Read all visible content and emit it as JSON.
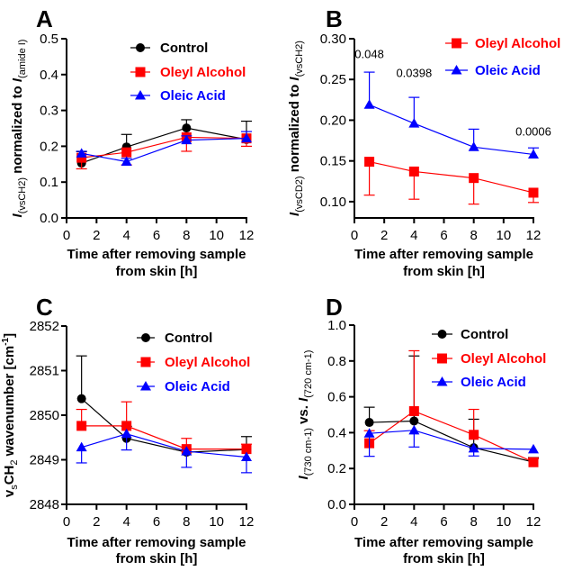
{
  "colors": {
    "Control": "#000000",
    "Oleyl Alcohol": "#ff0000",
    "Oleic Acid": "#0000ff"
  },
  "chart_data": [
    {
      "panel": "A",
      "type": "line",
      "xlabel": [
        "Time after removing sample",
        "from skin [h]"
      ],
      "ylabel": [
        {
          "t": "I",
          "s": "italic"
        },
        {
          "t": "(vsCH2)",
          "s": "sub"
        },
        {
          "t": " normalized to ",
          "s": "normal"
        },
        {
          "t": "I",
          "s": "italic"
        },
        {
          "t": "(amide I)",
          "s": "sub"
        }
      ],
      "xlim": [
        0,
        12
      ],
      "xticks": [
        0,
        2,
        4,
        6,
        8,
        10,
        12
      ],
      "ylim": [
        0,
        0.5
      ],
      "yticks": [
        "0.0",
        "0.1",
        "0.2",
        "0.3",
        "0.4",
        "0.5"
      ],
      "ytick_values": [
        0,
        0.1,
        0.2,
        0.3,
        0.4,
        0.5
      ],
      "legend": [
        "Control",
        "Oleyl Alcohol",
        "Oleic Acid"
      ],
      "legend_position": "top-right",
      "x": [
        1,
        4,
        8,
        12
      ],
      "series": [
        {
          "name": "Control",
          "marker": "circle",
          "values": [
            0.153,
            0.198,
            0.251,
            0.219
          ],
          "err": [
            0.032,
            0.035,
            0.023,
            0.051
          ],
          "err_dir": "up"
        },
        {
          "name": "Oleyl Alcohol",
          "marker": "square",
          "values": [
            0.168,
            0.183,
            0.225,
            0.222
          ],
          "err": [
            0.031,
            0.035,
            0.039,
            0.022
          ],
          "err_dir": "down"
        },
        {
          "name": "Oleic Acid",
          "marker": "triangle",
          "values": [
            0.18,
            0.157,
            0.217,
            0.222
          ],
          "err": [
            0.006,
            0.009,
            0.012,
            0.019
          ],
          "err_dir": "up"
        }
      ],
      "annotations": []
    },
    {
      "panel": "B",
      "type": "line",
      "xlabel": [
        "Time after removing sample",
        "from skin [h]"
      ],
      "ylabel": [
        {
          "t": "I",
          "s": "italic"
        },
        {
          "t": "(vsCD2)",
          "s": "sub"
        },
        {
          "t": " normalized to ",
          "s": "normal"
        },
        {
          "t": "I",
          "s": "italic"
        },
        {
          "t": "(vsCH2)",
          "s": "sub"
        }
      ],
      "xlim": [
        0,
        12
      ],
      "xticks": [
        0,
        2,
        4,
        6,
        8,
        10,
        12
      ],
      "ylim": [
        0.08,
        0.3
      ],
      "yticks": [
        "0.10",
        "0.15",
        "0.20",
        "0.25",
        "0.30"
      ],
      "ytick_values": [
        0.1,
        0.15,
        0.2,
        0.25,
        0.3
      ],
      "legend": [
        "Oleyl Alcohol",
        "Oleic Acid"
      ],
      "legend_position": "top-right",
      "x": [
        1,
        4,
        8,
        12
      ],
      "series": [
        {
          "name": "Oleyl Alcohol",
          "marker": "square",
          "values": [
            0.149,
            0.137,
            0.129,
            0.111
          ],
          "err": [
            0.041,
            0.034,
            0.032,
            0.012
          ],
          "err_dir": "down"
        },
        {
          "name": "Oleic Acid",
          "marker": "triangle",
          "values": [
            0.219,
            0.196,
            0.167,
            0.158
          ],
          "err": [
            0.04,
            0.032,
            0.022,
            0.008
          ],
          "err_dir": "up"
        }
      ],
      "annotations": [
        {
          "x": 1,
          "y": 0.276,
          "text": "0.048"
        },
        {
          "x": 4,
          "y": 0.253,
          "text": "0.0398"
        },
        {
          "x": 12,
          "y": 0.181,
          "text": "0.0006"
        }
      ]
    },
    {
      "panel": "C",
      "type": "line",
      "xlabel": [
        "Time after removing sample",
        "from skin [h]"
      ],
      "ylabel": [
        {
          "t": "v",
          "s": "normal"
        },
        {
          "t": "s",
          "s": "sub"
        },
        {
          "t": "CH",
          "s": "normal"
        },
        {
          "t": "2",
          "s": "sub"
        },
        {
          "t": " wavenumber [cm",
          "s": "normal"
        },
        {
          "t": "-1",
          "s": "sup"
        },
        {
          "t": "]",
          "s": "normal"
        }
      ],
      "xlim": [
        0,
        12
      ],
      "xticks": [
        0,
        2,
        4,
        6,
        8,
        10,
        12
      ],
      "ylim": [
        2848,
        2852
      ],
      "yticks": [
        "2848",
        "2849",
        "2850",
        "2851",
        "2852"
      ],
      "ytick_values": [
        2848,
        2849,
        2850,
        2851,
        2852
      ],
      "legend": [
        "Control",
        "Oleyl Alcohol",
        "Oleic Acid"
      ],
      "legend_position": "top-right",
      "x": [
        1,
        4,
        8,
        12
      ],
      "series": [
        {
          "name": "Control",
          "marker": "circle",
          "values": [
            2850.37,
            2849.48,
            2849.17,
            2849.23
          ],
          "err": [
            0.96,
            0.27,
            0.0,
            0.29
          ],
          "err_dir": "up"
        },
        {
          "name": "Oleyl Alcohol",
          "marker": "square",
          "values": [
            2849.76,
            2849.76,
            2849.24,
            2849.24
          ],
          "err": [
            0.37,
            0.54,
            0.24,
            0.11
          ],
          "err_dir": "up"
        },
        {
          "name": "Oleic Acid",
          "marker": "triangle",
          "values": [
            2849.28,
            2849.58,
            2849.19,
            2849.06
          ],
          "err": [
            0.35,
            0.36,
            0.36,
            0.35
          ],
          "err_dir": "down"
        }
      ],
      "annotations": []
    },
    {
      "panel": "D",
      "type": "line",
      "xlabel": [
        "Time after removing sample",
        "from skin [h]"
      ],
      "ylabel": [
        {
          "t": "I",
          "s": "italic"
        },
        {
          "t": "(730 cm-1)",
          "s": "sub"
        },
        {
          "t": " vs. ",
          "s": "normal"
        },
        {
          "t": "I",
          "s": "italic"
        },
        {
          "t": "(720 cm-1)",
          "s": "sub"
        }
      ],
      "xlim": [
        0,
        12
      ],
      "xticks": [
        0,
        2,
        4,
        6,
        8,
        10,
        12
      ],
      "ylim": [
        0,
        1.0
      ],
      "yticks": [
        "0.0",
        "0.2",
        "0.4",
        "0.6",
        "0.8",
        "1.0"
      ],
      "ytick_values": [
        0,
        0.2,
        0.4,
        0.6,
        0.8,
        1.0
      ],
      "legend": [
        "Control",
        "Oleyl Alcohol",
        "Oleic Acid"
      ],
      "legend_position": "top-right",
      "x": [
        1,
        4,
        8,
        12
      ],
      "series": [
        {
          "name": "Control",
          "marker": "circle",
          "values": [
            0.457,
            0.465,
            0.316,
            0.236
          ],
          "err": [
            0.085,
            0.363,
            0.159,
            0.025
          ],
          "err_dir": "up"
        },
        {
          "name": "Oleyl Alcohol",
          "marker": "square",
          "values": [
            0.341,
            0.52,
            0.388,
            0.235
          ],
          "err": [
            0.07,
            0.337,
            0.142,
            0.02
          ],
          "err_dir": "up"
        },
        {
          "name": "Oleic Acid",
          "marker": "triangle",
          "values": [
            0.396,
            0.413,
            0.312,
            0.307
          ],
          "err": [
            0.128,
            0.093,
            0.042,
            0.0
          ],
          "err_dir": "down"
        }
      ],
      "annotations": []
    }
  ]
}
